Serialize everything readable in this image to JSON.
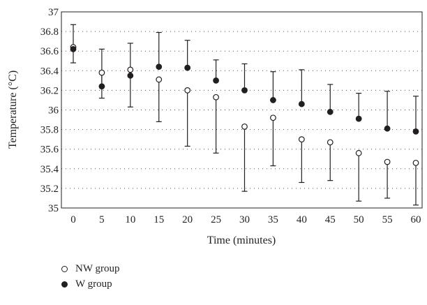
{
  "chart_data": {
    "type": "scatter",
    "xlabel": "Time (minutes)",
    "ylabel": "Temperature (°C)",
    "x": [
      0,
      5,
      10,
      15,
      20,
      25,
      30,
      35,
      40,
      45,
      50,
      55,
      60
    ],
    "xlim": [
      0,
      60
    ],
    "ylim": [
      35,
      37
    ],
    "yticks": [
      35,
      35.2,
      35.4,
      35.6,
      35.8,
      36,
      36.2,
      36.4,
      36.6,
      36.8,
      37
    ],
    "ytick_labels": [
      "35",
      "35.2",
      "35.4",
      "35.6",
      "35.8",
      "36",
      "36.2",
      "36.4",
      "36.6",
      "36.8",
      "37"
    ],
    "xtick_labels": [
      "0",
      "5",
      "10",
      "15",
      "20",
      "25",
      "30",
      "35",
      "40",
      "45",
      "50",
      "55",
      "60"
    ],
    "grid": "horizontal dotted",
    "legend_position": "below",
    "series": [
      {
        "name": "NW group",
        "marker": "open-circle",
        "values": [
          36.64,
          36.38,
          36.41,
          36.31,
          36.2,
          36.13,
          35.83,
          35.92,
          35.7,
          35.67,
          35.56,
          35.47,
          35.46
        ],
        "error_bar": "lower",
        "error_low": [
          36.48,
          36.12,
          36.03,
          35.88,
          35.63,
          35.56,
          35.17,
          35.43,
          35.26,
          35.28,
          35.07,
          35.1,
          35.03
        ]
      },
      {
        "name": "W group",
        "marker": "filled-circle",
        "values": [
          36.62,
          36.24,
          36.35,
          36.44,
          36.43,
          36.3,
          36.2,
          36.1,
          36.06,
          35.98,
          35.91,
          35.81,
          35.78
        ],
        "error_bar": "upper",
        "error_high": [
          36.87,
          36.62,
          36.68,
          36.79,
          36.71,
          36.51,
          36.47,
          36.39,
          36.41,
          36.26,
          36.17,
          36.19,
          36.14
        ]
      }
    ]
  },
  "legend": {
    "items": [
      {
        "label": "NW group",
        "marker": "open-circle"
      },
      {
        "label": "W group",
        "marker": "filled-circle"
      }
    ]
  }
}
